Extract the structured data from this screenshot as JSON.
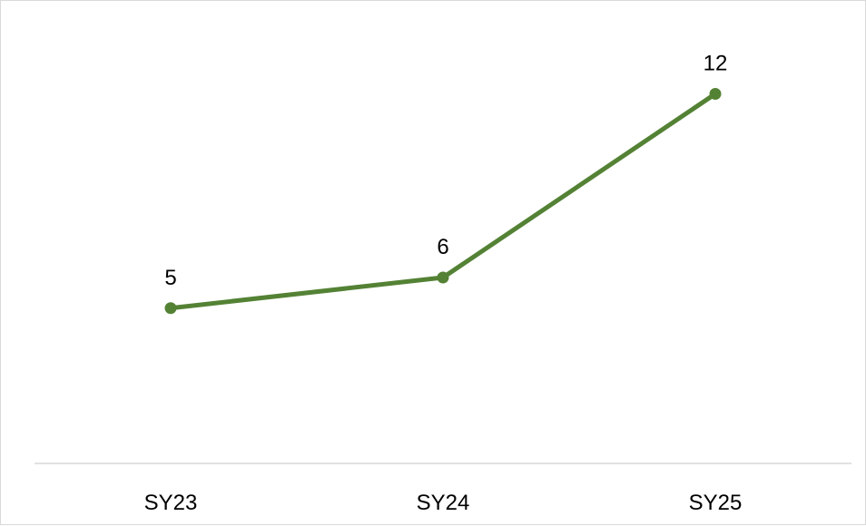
{
  "chart_data": {
    "type": "line",
    "categories": [
      "SY23",
      "SY24",
      "SY25"
    ],
    "series": [
      {
        "values": [
          5,
          6,
          12
        ],
        "color": "#548235"
      }
    ],
    "data_labels": [
      "5",
      "6",
      "12"
    ],
    "ylim": [
      0,
      14
    ],
    "grid": false,
    "legend": "none",
    "axis_color": "#d9d9d9"
  }
}
